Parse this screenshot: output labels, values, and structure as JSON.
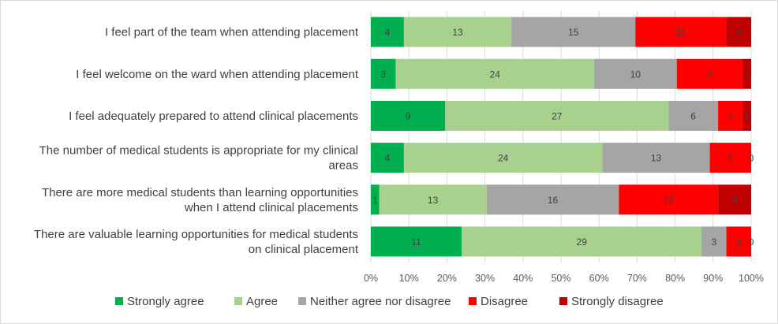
{
  "chart_data": {
    "type": "bar",
    "orientation": "horizontal",
    "stacked": "percent",
    "categories": [
      [
        "I feel part of the team when attending placement"
      ],
      [
        "I feel welcome on the ward when attending placement"
      ],
      [
        "I feel adequately prepared to attend clinical placements"
      ],
      [
        "The number of medical students is appropriate for my clinical",
        "areas"
      ],
      [
        "There are more medical students than learning opportunities",
        "when I attend clinical placements"
      ],
      [
        "There are valuable learning opportunities for medical students",
        "on clinical placement"
      ]
    ],
    "series": [
      {
        "name": "Strongly agree",
        "color": "#00b050",
        "values": [
          4,
          3,
          9,
          4,
          1,
          11
        ]
      },
      {
        "name": "Agree",
        "color": "#a9d18e",
        "values": [
          13,
          24,
          27,
          24,
          13,
          29
        ]
      },
      {
        "name": "Neither agree nor disagree",
        "color": "#a5a5a5",
        "values": [
          15,
          10,
          6,
          13,
          16,
          3
        ]
      },
      {
        "name": "Disagree",
        "color": "#ff0000",
        "values": [
          11,
          8,
          3,
          5,
          12,
          3
        ]
      },
      {
        "name": "Strongly disagree",
        "color": "#c00000",
        "values": [
          3,
          1,
          1,
          0,
          4,
          0
        ]
      }
    ],
    "xticks": [
      "0%",
      "10%",
      "20%",
      "30%",
      "40%",
      "50%",
      "60%",
      "70%",
      "80%",
      "90%",
      "100%"
    ],
    "xlim": [
      0,
      100
    ],
    "grid": true,
    "legend_position": "bottom",
    "title": "",
    "xlabel": "",
    "ylabel": ""
  }
}
